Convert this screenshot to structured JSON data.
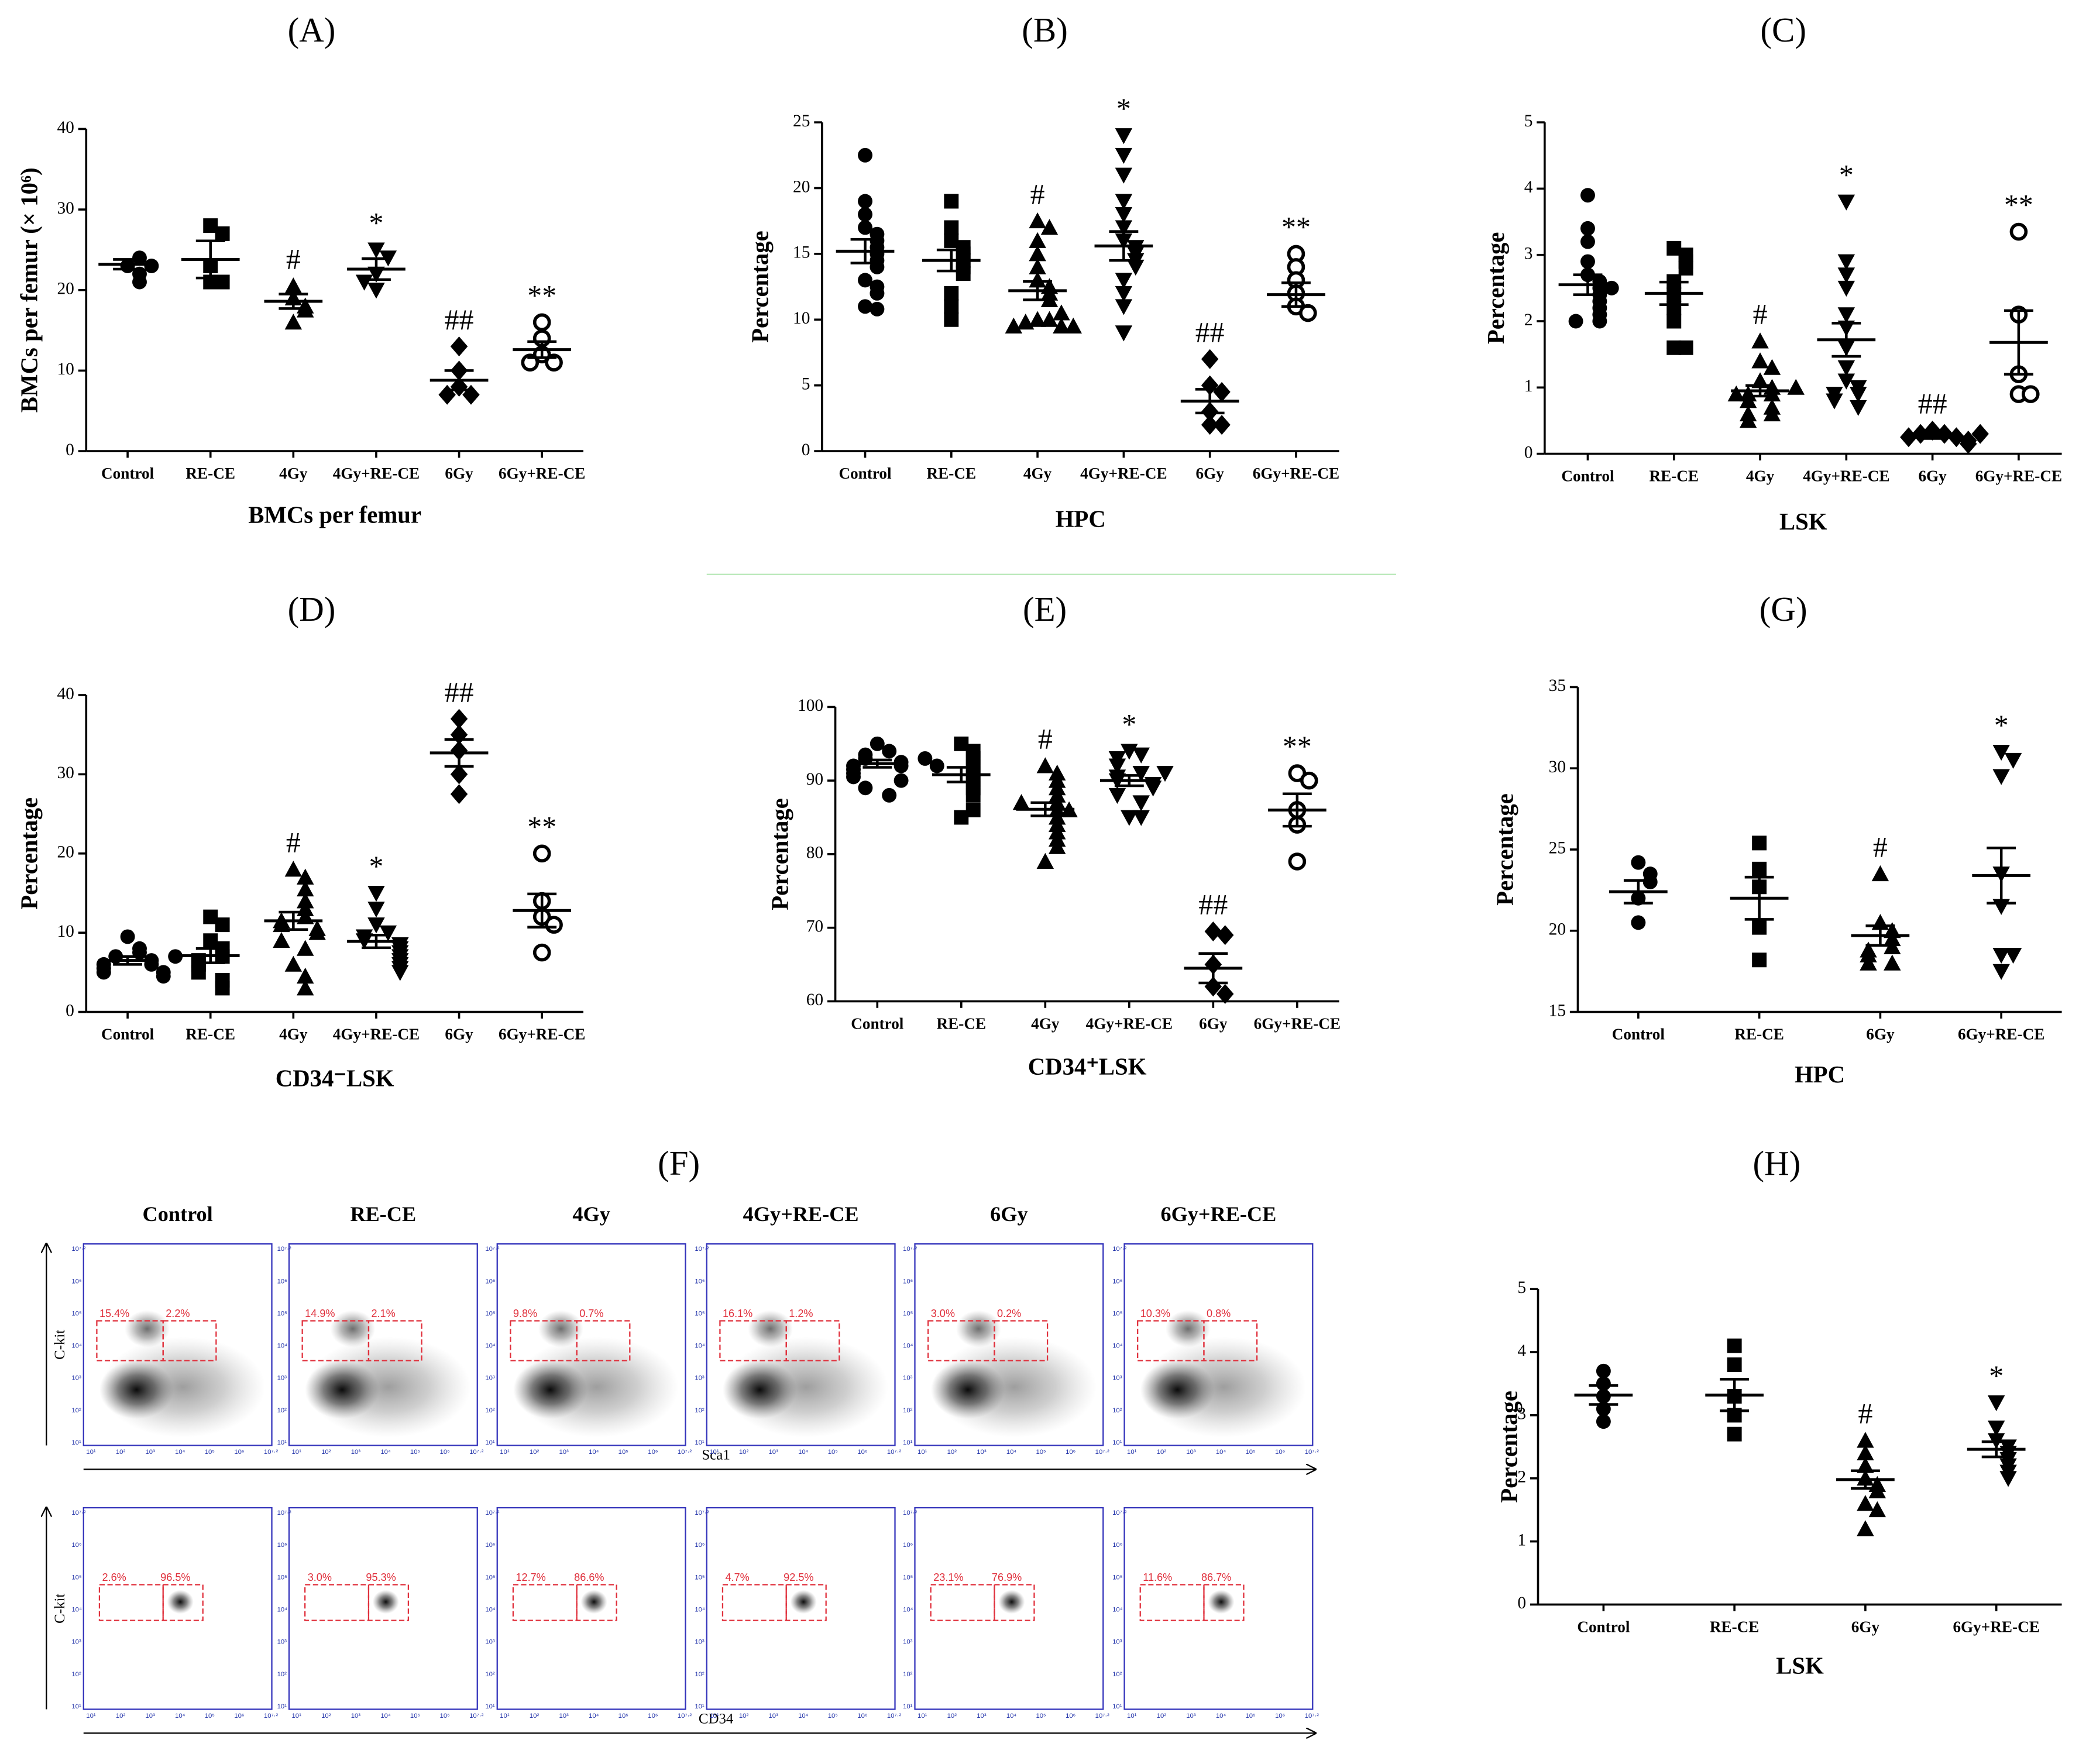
{
  "chart_data": [
    {
      "type": "dot",
      "panel": "(A)",
      "ylabel": "BMCs per femur  (× 10⁶)",
      "xlabel": "BMCs per femur",
      "categories": [
        "Control",
        "RE-CE",
        "4Gy",
        "4Gy+RE-CE",
        "6Gy",
        "6Gy+RE-CE"
      ],
      "markers": [
        "circle",
        "square",
        "triangle",
        "triangle-down",
        "diamond",
        "open-circle"
      ],
      "points": [
        [
          23,
          22,
          24,
          21,
          23
        ],
        [
          28,
          27,
          23,
          21,
          21
        ],
        [
          20.5,
          19,
          18,
          17.5,
          16
        ],
        [
          25,
          24,
          22,
          20,
          21
        ],
        [
          13,
          10,
          8,
          7,
          7
        ],
        [
          16,
          14,
          12,
          11,
          11
        ]
      ],
      "mean": [
        23.2,
        23.8,
        18.6,
        22.6,
        8.8,
        12.6
      ],
      "sem": [
        0.6,
        2.3,
        0.9,
        1.3,
        1.2,
        1
      ],
      "annotations": [
        null,
        null,
        "#",
        "*",
        "##",
        "**"
      ],
      "ylim": [
        0,
        40
      ],
      "yticks": [
        0,
        10,
        20,
        30,
        40
      ]
    },
    {
      "type": "dot",
      "panel": "(B)",
      "ylabel": "Percentage",
      "xlabel": "HPC",
      "categories": [
        "Control",
        "RE-CE",
        "4Gy",
        "4Gy+RE-CE",
        "6Gy",
        "6Gy+RE-CE"
      ],
      "markers": [
        "circle",
        "square",
        "triangle",
        "triangle-down",
        "diamond",
        "open-circle"
      ],
      "points": [
        [
          22.5,
          19,
          18,
          17,
          16.5,
          16,
          15.5,
          15,
          14.5,
          14,
          13,
          12.5,
          12,
          11,
          10.8
        ],
        [
          19,
          17,
          16,
          15.5,
          15,
          14.5,
          14,
          13.5,
          12,
          11,
          10
        ],
        [
          17.5,
          17,
          16,
          15,
          14,
          13,
          12.5,
          12,
          11.5,
          10,
          10,
          9.8,
          9.5,
          9.5,
          9.5,
          10.5
        ],
        [
          24,
          22.5,
          21,
          19,
          18,
          17,
          16,
          15.5,
          15,
          14.5,
          14,
          13,
          12,
          11,
          9
        ],
        [
          7,
          5,
          4.5,
          3,
          2,
          2
        ],
        [
          15,
          14,
          13,
          12,
          11,
          10.5
        ]
      ],
      "mean": [
        15.2,
        14.5,
        12.2,
        15.6,
        3.8,
        11.9
      ],
      "sem": [
        0.9,
        0.8,
        0.7,
        1.1,
        0.9,
        0.9
      ],
      "annotations": [
        null,
        null,
        "#",
        "*",
        "##",
        "**"
      ],
      "ylim": [
        0,
        25
      ],
      "yticks": [
        0,
        5,
        10,
        15,
        20,
        25
      ]
    },
    {
      "type": "dot",
      "panel": "(C)",
      "ylabel": "Percentage",
      "xlabel": "LSK",
      "categories": [
        "Control",
        "RE-CE",
        "4Gy",
        "4Gy+RE-CE",
        "6Gy",
        "6Gy+RE-CE"
      ],
      "markers": [
        "circle",
        "square",
        "triangle",
        "triangle-down",
        "diamond",
        "open-circle"
      ],
      "points": [
        [
          3.9,
          3.4,
          3.2,
          2.9,
          2.7,
          2.6,
          2.5,
          2.4,
          2.3,
          2.2,
          2.1,
          2.0,
          2.0,
          2.5
        ],
        [
          3.1,
          3.0,
          2.9,
          2.8,
          2.6,
          2.4,
          2.2,
          2.0,
          1.6,
          1.6
        ],
        [
          1.7,
          1.4,
          1.3,
          1.1,
          1.0,
          0.9,
          0.9,
          0.8,
          0.7,
          0.6,
          0.6,
          0.5,
          0.9,
          1.0
        ],
        [
          3.8,
          2.9,
          2.7,
          2.5,
          2.1,
          1.9,
          1.6,
          1.3,
          1.1,
          1.0,
          0.9,
          0.9,
          0.8,
          0.7
        ],
        [
          0.35,
          0.3,
          0.3,
          0.25,
          0.25,
          0.2,
          0.15,
          0.3
        ],
        [
          3.35,
          2.1,
          1.2,
          0.9,
          0.9
        ]
      ],
      "mean": [
        2.55,
        2.42,
        0.95,
        1.72,
        0.26,
        1.68
      ],
      "sem": [
        0.15,
        0.17,
        0.08,
        0.25,
        0.03,
        0.48
      ],
      "annotations": [
        null,
        null,
        "#",
        "*",
        "##",
        "**"
      ],
      "ylim": [
        0,
        5
      ],
      "yticks": [
        0,
        1,
        2,
        3,
        4,
        5
      ]
    },
    {
      "type": "dot",
      "panel": "(D)",
      "ylabel": "Percentage",
      "xlabel": "CD34⁻LSK",
      "categories": [
        "Control",
        "RE-CE",
        "4Gy",
        "4Gy+RE-CE",
        "6Gy",
        "6Gy+RE-CE"
      ],
      "markers": [
        "circle",
        "square",
        "triangle",
        "triangle-down",
        "diamond",
        "open-circle"
      ],
      "points": [
        [
          9.5,
          8,
          7.5,
          7,
          6.5,
          6,
          6,
          5.5,
          5,
          5,
          4.5,
          7
        ],
        [
          12,
          11,
          9,
          8,
          7,
          6.5,
          6,
          5,
          4,
          3
        ],
        [
          18,
          17,
          15.5,
          14,
          13,
          12,
          11.5,
          11,
          10.5,
          10,
          9,
          8,
          6,
          4.5,
          3
        ],
        [
          15,
          13,
          11,
          10,
          9.5,
          9,
          8.5,
          8,
          7.5,
          7,
          6.5,
          6,
          5.5,
          5
        ],
        [
          37,
          35,
          33,
          30,
          27.5
        ],
        [
          20,
          14,
          12,
          11,
          7.5
        ]
      ],
      "mean": [
        6.5,
        7.1,
        11.5,
        8.9,
        32.7,
        12.8
      ],
      "sem": [
        0.5,
        0.9,
        1.1,
        0.8,
        1.7,
        2.1
      ],
      "annotations": [
        null,
        null,
        "#",
        "*",
        "##",
        "**"
      ],
      "ylim": [
        0,
        40
      ],
      "yticks": [
        0,
        10,
        20,
        30,
        40
      ]
    },
    {
      "type": "dot",
      "panel": "(E)",
      "ylabel": "Percentage",
      "xlabel": "CD34⁺LSK",
      "categories": [
        "Control",
        "RE-CE",
        "4Gy",
        "4Gy+RE-CE",
        "6Gy",
        "6Gy+RE-CE"
      ],
      "markers": [
        "circle",
        "square",
        "triangle",
        "triangle-down",
        "diamond",
        "open-circle"
      ],
      "points": [
        [
          95,
          94,
          93.5,
          93,
          92.5,
          92,
          92,
          91.5,
          91,
          90.5,
          90,
          89,
          88,
          93,
          92
        ],
        [
          95,
          94,
          93,
          92,
          91,
          90,
          89,
          88,
          85,
          86
        ],
        [
          92,
          91,
          90,
          89,
          88,
          87,
          86,
          85,
          84,
          83,
          82,
          81,
          79,
          86,
          87
        ],
        [
          94,
          93.5,
          93,
          92,
          91,
          90.5,
          90,
          89.5,
          89,
          88,
          87,
          85,
          85,
          91
        ],
        [
          69.5,
          69,
          65,
          62,
          61
        ],
        [
          91,
          90,
          86,
          84,
          79
        ]
      ],
      "mean": [
        92.3,
        90.8,
        86.1,
        90,
        64.5,
        86
      ],
      "sem": [
        0.5,
        1,
        0.9,
        0.7,
        2,
        2.2
      ],
      "annotations": [
        null,
        null,
        "#",
        "*",
        "##",
        "**"
      ],
      "ylim": [
        60,
        100
      ],
      "yticks": [
        60,
        70,
        80,
        90,
        100
      ]
    },
    {
      "type": "flow",
      "panel": "(F)",
      "columns": [
        "Control",
        "RE-CE",
        "4Gy",
        "4Gy+RE-CE",
        "6Gy",
        "6Gy+RE-CE"
      ],
      "tick_labels": [
        "10¹",
        "10²",
        "10³",
        "10⁴",
        "10⁵",
        "10⁶",
        "10⁷·²"
      ],
      "rows": [
        {
          "x_label": "Sca1",
          "y_label": "C-kit",
          "gates": [
            [
              "15.4%",
              "2.2%"
            ],
            [
              "14.9%",
              "2.1%"
            ],
            [
              "9.8%",
              "0.7%"
            ],
            [
              "16.1%",
              "1.2%"
            ],
            [
              "3.0%",
              "0.2%"
            ],
            [
              "10.3%",
              "0.8%"
            ]
          ]
        },
        {
          "x_label": "CD34",
          "y_label": "C-kit",
          "gates": [
            [
              "2.6%",
              "96.5%"
            ],
            [
              "3.0%",
              "95.3%"
            ],
            [
              "12.7%",
              "86.6%"
            ],
            [
              "4.7%",
              "92.5%"
            ],
            [
              "23.1%",
              "76.9%"
            ],
            [
              "11.6%",
              "86.7%"
            ]
          ]
        }
      ]
    },
    {
      "type": "dot",
      "panel": "(G)",
      "ylabel": "Percentage",
      "xlabel": "HPC",
      "categories": [
        "Control",
        "RE-CE",
        "6Gy",
        "6Gy+RE-CE"
      ],
      "markers": [
        "circle",
        "square",
        "triangle",
        "triangle-down"
      ],
      "points": [
        [
          24.2,
          23.5,
          23,
          22,
          20.5
        ],
        [
          25.4,
          23.8,
          22.7,
          20.2,
          18.2
        ],
        [
          23.5,
          20.5,
          20,
          19.5,
          19,
          18.8,
          18.5,
          18,
          18
        ],
        [
          31,
          30.5,
          29.5,
          23.5,
          21.5,
          18.5,
          18.5,
          17.5
        ]
      ],
      "mean": [
        22.4,
        22,
        19.7,
        23.4
      ],
      "sem": [
        0.7,
        1.3,
        0.6,
        1.7
      ],
      "annotations": [
        null,
        null,
        "#",
        "*"
      ],
      "ylim": [
        15,
        35
      ],
      "yticks": [
        15,
        20,
        25,
        30,
        35
      ]
    },
    {
      "type": "dot",
      "panel": "(H)",
      "ylabel": "Percentage",
      "xlabel": "LSK",
      "categories": [
        "Control",
        "RE-CE",
        "6Gy",
        "6Gy+RE-CE"
      ],
      "markers": [
        "circle",
        "square",
        "triangle",
        "triangle-down"
      ],
      "points": [
        [
          3.7,
          3.5,
          3.3,
          3.1,
          2.9
        ],
        [
          4.1,
          3.8,
          3.3,
          3.0,
          2.7
        ],
        [
          2.6,
          2.4,
          2.2,
          2.0,
          1.9,
          1.8,
          1.6,
          1.5,
          1.2
        ],
        [
          3.2,
          2.8,
          2.6,
          2.5,
          2.4,
          2.3,
          2.2,
          2.1,
          2.0
        ]
      ],
      "mean": [
        3.32,
        3.32,
        1.98,
        2.46
      ],
      "sem": [
        0.15,
        0.25,
        0.14,
        0.12
      ],
      "annotations": [
        null,
        null,
        "#",
        "*"
      ],
      "ylim": [
        0,
        5
      ],
      "yticks": [
        0,
        1,
        2,
        3,
        4,
        5
      ]
    }
  ]
}
